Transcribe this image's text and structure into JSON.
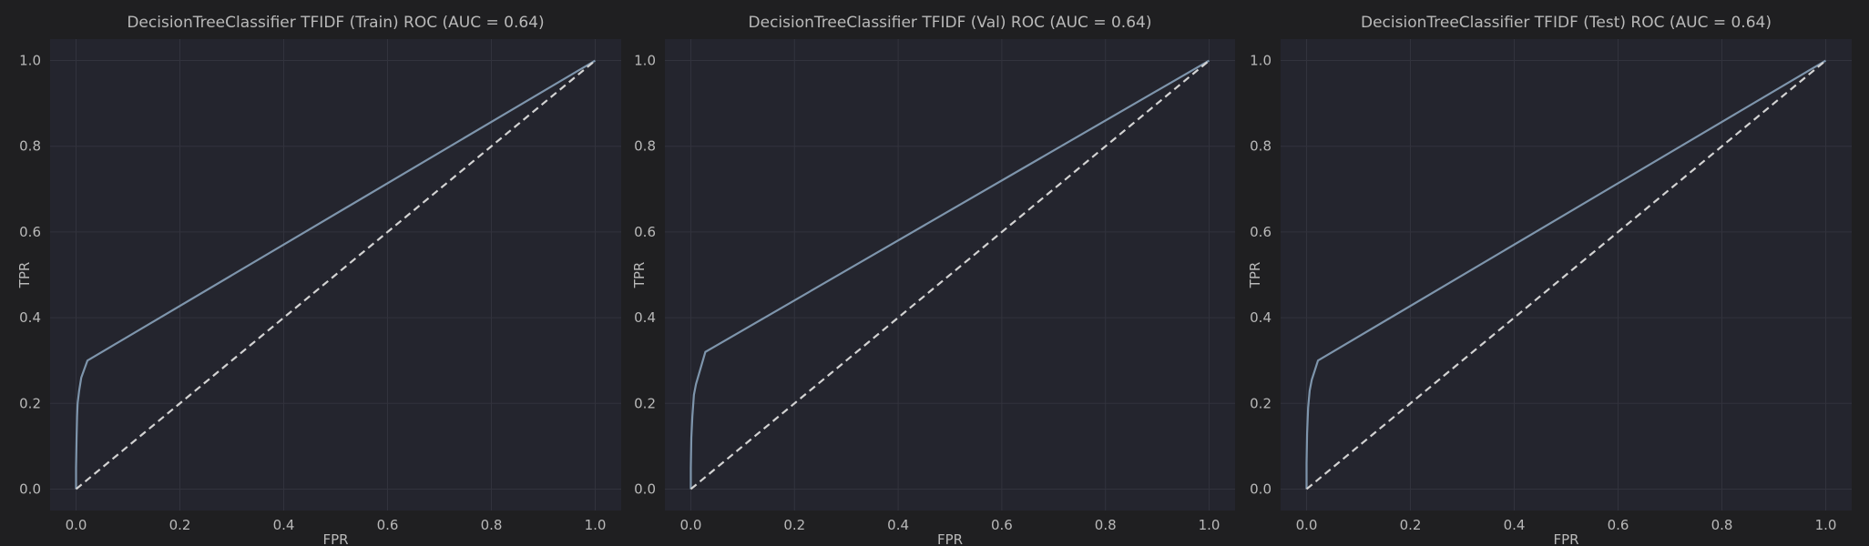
{
  "colors": {
    "background": "#1f1f21",
    "plot_background": "#24252e",
    "grid": "#32333d",
    "text": "#b9b9b9",
    "roc_line": "#7e95ac",
    "chance_line": "#d3d3d3"
  },
  "chart_data": [
    {
      "type": "line",
      "title": "DecisionTreeClassifier TFIDF (Train) ROC (AUC = 0.64)",
      "xlabel": "FPR",
      "ylabel": "TPR",
      "xlim": [
        -0.05,
        1.05
      ],
      "ylim": [
        -0.05,
        1.05
      ],
      "xticks": [
        "0.0",
        "0.2",
        "0.4",
        "0.6",
        "0.8",
        "1.0"
      ],
      "yticks": [
        "0.0",
        "0.2",
        "0.4",
        "0.6",
        "0.8",
        "1.0"
      ],
      "grid": true,
      "series": [
        {
          "x": [
            0.0,
            0.0,
            0.001,
            0.002,
            0.003,
            0.006,
            0.01,
            0.022,
            1.0
          ],
          "y": [
            0.0,
            0.05,
            0.12,
            0.17,
            0.2,
            0.23,
            0.26,
            0.3,
            1.0
          ]
        },
        {
          "style": "dashed",
          "x": [
            0.0,
            1.0
          ],
          "y": [
            0.0,
            1.0
          ]
        }
      ]
    },
    {
      "type": "line",
      "title": "DecisionTreeClassifier TFIDF (Val) ROC (AUC = 0.64)",
      "xlabel": "FPR",
      "ylabel": "TPR",
      "xlim": [
        -0.05,
        1.05
      ],
      "ylim": [
        -0.05,
        1.05
      ],
      "xticks": [
        "0.0",
        "0.2",
        "0.4",
        "0.6",
        "0.8",
        "1.0"
      ],
      "yticks": [
        "0.0",
        "0.2",
        "0.4",
        "0.6",
        "0.8",
        "1.0"
      ],
      "grid": true,
      "series": [
        {
          "x": [
            0.0,
            0.0,
            0.001,
            0.003,
            0.006,
            0.01,
            0.028,
            1.0
          ],
          "y": [
            0.0,
            0.05,
            0.12,
            0.17,
            0.22,
            0.245,
            0.32,
            1.0
          ]
        },
        {
          "style": "dashed",
          "x": [
            0.0,
            1.0
          ],
          "y": [
            0.0,
            1.0
          ]
        }
      ]
    },
    {
      "type": "line",
      "title": "DecisionTreeClassifier TFIDF (Test) ROC (AUC = 0.64)",
      "xlabel": "FPR",
      "ylabel": "TPR",
      "xlim": [
        -0.05,
        1.05
      ],
      "ylim": [
        -0.05,
        1.05
      ],
      "xticks": [
        "0.0",
        "0.2",
        "0.4",
        "0.6",
        "0.8",
        "1.0"
      ],
      "yticks": [
        "0.0",
        "0.2",
        "0.4",
        "0.6",
        "0.8",
        "1.0"
      ],
      "grid": true,
      "series": [
        {
          "x": [
            0.0,
            0.0,
            0.001,
            0.003,
            0.006,
            0.01,
            0.022,
            1.0
          ],
          "y": [
            0.0,
            0.06,
            0.13,
            0.19,
            0.23,
            0.255,
            0.3,
            1.0
          ]
        },
        {
          "style": "dashed",
          "x": [
            0.0,
            1.0
          ],
          "y": [
            0.0,
            1.0
          ]
        }
      ]
    }
  ]
}
